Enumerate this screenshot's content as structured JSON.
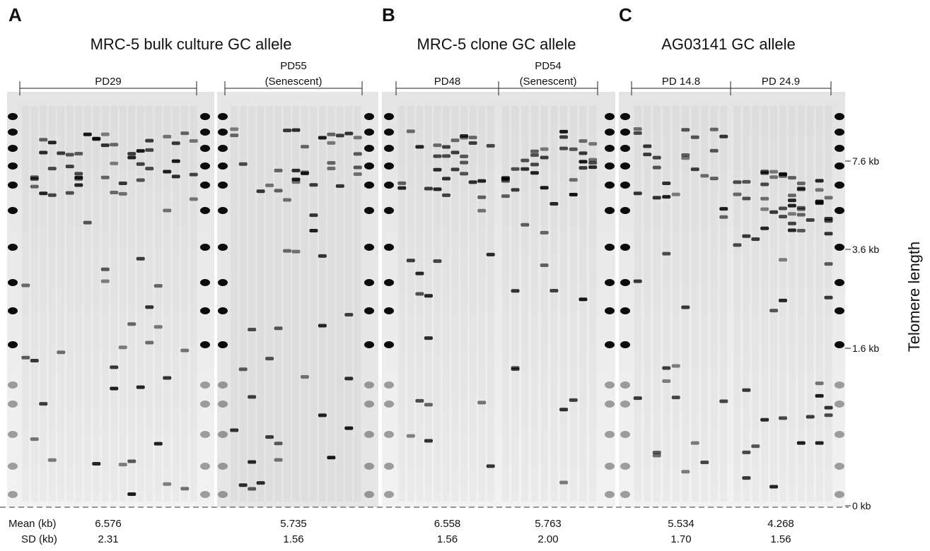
{
  "panels": [
    {
      "letter": "A",
      "title": "MRC-5 bulk culture GC allele",
      "groups": [
        {
          "label": [
            "PD29"
          ],
          "mean": "6.576",
          "sd": "2.31"
        },
        {
          "label": [
            "PD55",
            "(Senescent)"
          ],
          "mean": "5.735",
          "sd": "1.56"
        }
      ]
    },
    {
      "letter": "B",
      "title": "MRC-5 clone GC allele",
      "groups": [
        {
          "label": [
            "PD48"
          ],
          "mean": "6.558",
          "sd": "1.56"
        },
        {
          "label": [
            "PD54",
            "(Senescent)"
          ],
          "mean": "5.763",
          "sd": "2.00"
        }
      ]
    },
    {
      "letter": "C",
      "title": "AG03141 GC allele",
      "groups": [
        {
          "label": [
            "PD 14.8"
          ],
          "mean": "5.534",
          "sd": "1.70"
        },
        {
          "label": [
            "PD 24.9"
          ],
          "mean": "4.268",
          "sd": "1.56"
        }
      ]
    }
  ],
  "row_labels": {
    "mean": "Mean (kb)",
    "sd": "SD (kb)"
  },
  "size_axis": {
    "title": "Telomere length",
    "ticks": [
      "7.6 kb",
      "3.6 kb",
      "1.6 kb",
      "0 kb"
    ]
  }
}
